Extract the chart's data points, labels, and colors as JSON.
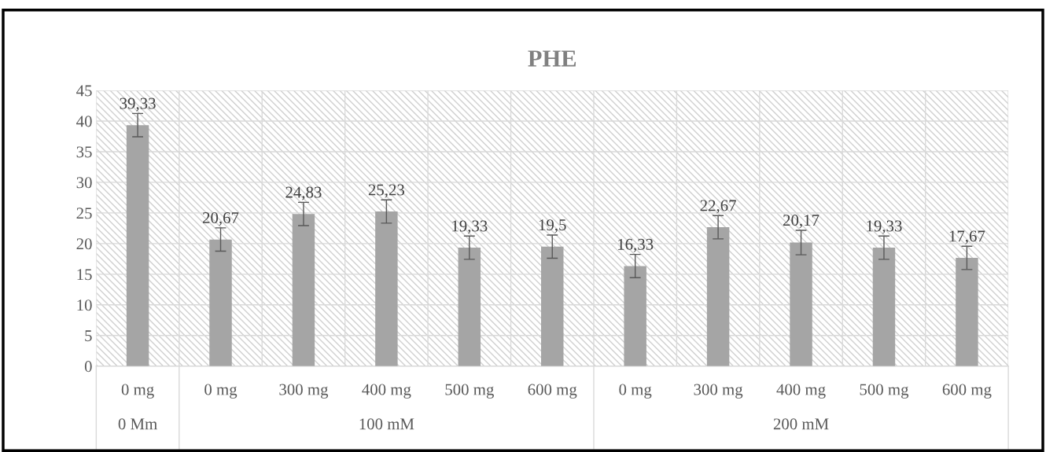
{
  "chart_data": {
    "type": "bar",
    "title": "PHE",
    "categories": [
      "0 mg",
      "0 mg",
      "300 mg",
      "400 mg",
      "500 mg",
      "600 mg",
      "0 mg",
      "300 mg",
      "400 mg",
      "500 mg",
      "600 mg"
    ],
    "values": [
      39.33,
      20.67,
      24.83,
      25.23,
      19.33,
      19.5,
      16.33,
      22.67,
      20.17,
      19.33,
      17.67
    ],
    "errors": [
      1.9,
      1.9,
      1.9,
      1.9,
      1.9,
      1.9,
      1.9,
      1.9,
      2.0,
      1.9,
      1.9
    ],
    "value_labels": [
      "39,33",
      "20,67",
      "24,83",
      "25,23",
      "19,33",
      "19,5",
      "16,33",
      "22,67",
      "20,17",
      "19,33",
      "17,67"
    ],
    "color": "#a5a5a5",
    "annotations": [
      "0 Mm",
      "100 mM",
      "200 mM"
    ],
    "ylim": [
      0,
      45
    ],
    "yticks": [
      0,
      5,
      10,
      15,
      20,
      25,
      30,
      35,
      40,
      45
    ],
    "grid": true
  }
}
